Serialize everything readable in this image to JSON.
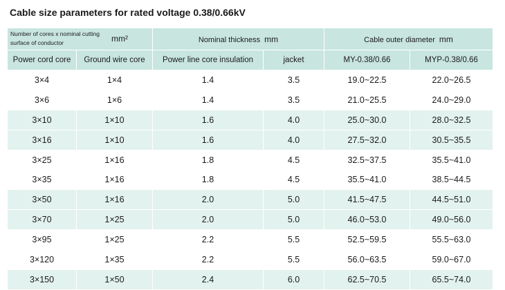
{
  "title": "Cable size parameters for rated voltage 0.38/0.66kV",
  "header": {
    "cores_line1": "Number of cores x nominal cutting",
    "cores_line2": "surface of conductor",
    "cores_unit": "mm²",
    "thickness_label": "Nominal thickness",
    "thickness_unit": "mm",
    "diameter_label": "Cable outer diameter",
    "diameter_unit": "mm",
    "columns": [
      "Power cord core",
      "Ground wire core",
      "Power line core insulation",
      "jacket",
      "MY-0.38/0.66",
      "MYP-0.38/0.66"
    ]
  },
  "rows": [
    [
      "3×4",
      "1×4",
      "1.4",
      "3.5",
      "19.0~22.5",
      "22.0~26.5"
    ],
    [
      "3×6",
      "1×6",
      "1.4",
      "3.5",
      "21.0~25.5",
      "24.0~29.0"
    ],
    [
      "3×10",
      "1×10",
      "1.6",
      "4.0",
      "25.0~30.0",
      "28.0~32.5"
    ],
    [
      "3×16",
      "1×10",
      "1.6",
      "4.0",
      "27.5~32.0",
      "30.5~35.5"
    ],
    [
      "3×25",
      "1×16",
      "1.8",
      "4.5",
      "32.5~37.5",
      "35.5~41.0"
    ],
    [
      "3×35",
      "1×16",
      "1.8",
      "4.5",
      "35.5~41.0",
      "38.5~44.5"
    ],
    [
      "3×50",
      "1×16",
      "2.0",
      "5.0",
      "41.5~47.5",
      "44.5~51.0"
    ],
    [
      "3×70",
      "1×25",
      "2.0",
      "5.0",
      "46.0~53.0",
      "49.0~56.0"
    ],
    [
      "3×95",
      "1×25",
      "2.2",
      "5.5",
      "52.5~59.5",
      "55.5~63.0"
    ],
    [
      "3×120",
      "1×35",
      "2.2",
      "5.5",
      "56.0~63.5",
      "59.0~67.0"
    ],
    [
      "3×150",
      "1×50",
      "2.4",
      "6.0",
      "62.5~70.5",
      "65.5~74.0"
    ]
  ],
  "colors": {
    "header_bg": "#c8e5df",
    "shaded_row_bg": "#e2f2ee",
    "plain_row_bg": "#ffffff"
  }
}
